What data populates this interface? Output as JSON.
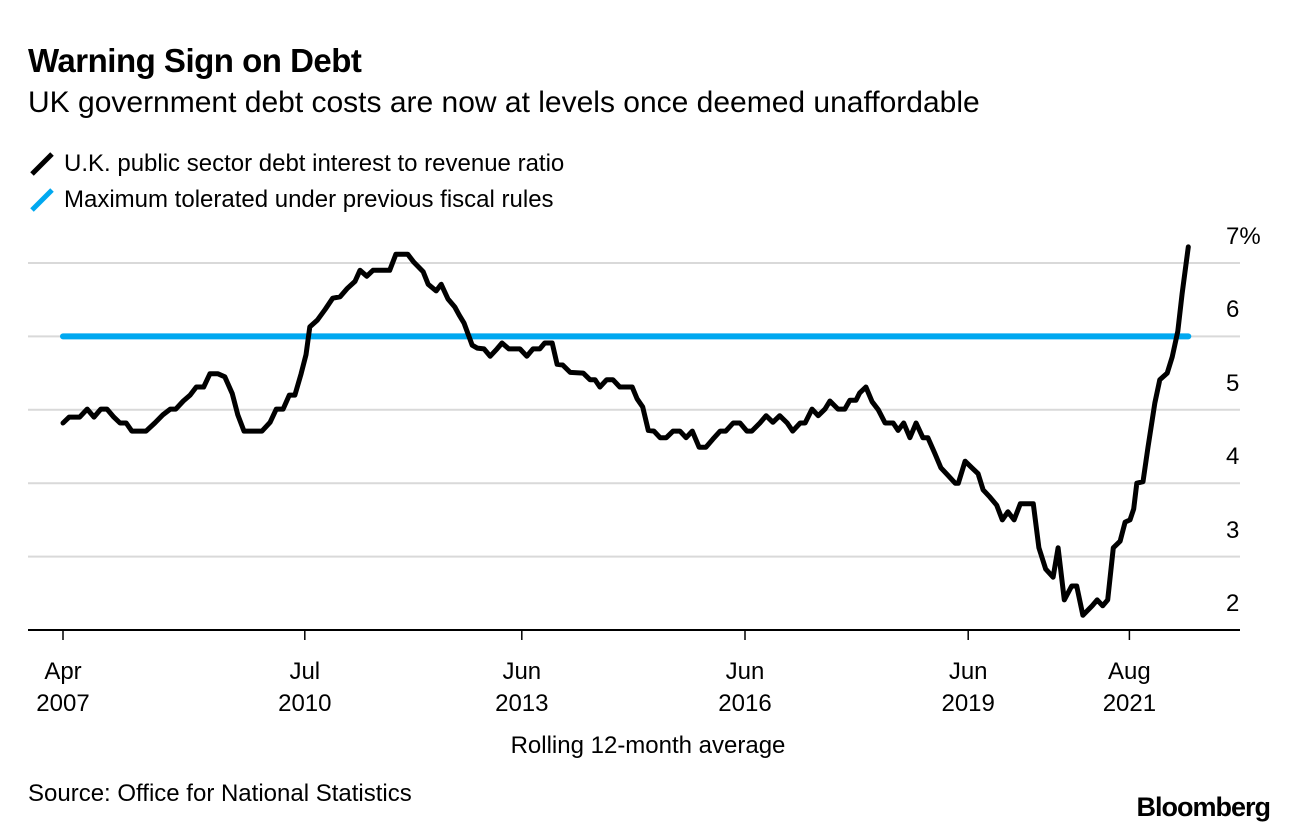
{
  "header": {
    "title": "Warning Sign on Debt",
    "subtitle": "UK government debt costs are now at levels once deemed unaffordable"
  },
  "legend": [
    {
      "label": "U.K. public sector debt interest to revenue ratio",
      "color": "#000000",
      "icon": "diagonal-line-icon"
    },
    {
      "label": "Maximum tolerated under previous fiscal rules",
      "color": "#00a8f0",
      "icon": "diagonal-line-icon"
    }
  ],
  "footer": {
    "xlabel": "Rolling 12-month average",
    "source": "Source: Office for National Statistics",
    "brand": "Bloomberg"
  },
  "chart_data": {
    "type": "line",
    "title": "Warning Sign on Debt",
    "subtitle": "UK government debt costs are now at levels once deemed unaffordable",
    "xlabel": "Rolling 12-month average",
    "ylabel": "",
    "x_unit": "months since Apr 2007",
    "xlim": [
      -5.5,
      189
    ],
    "ylim": [
      2,
      7
    ],
    "y_ticks": [
      {
        "value": 7,
        "label": "7%"
      },
      {
        "value": 6,
        "label": "6"
      },
      {
        "value": 5,
        "label": "5"
      },
      {
        "value": 4,
        "label": "4"
      },
      {
        "value": 3,
        "label": "3"
      },
      {
        "value": 2,
        "label": "2"
      }
    ],
    "x_ticks": [
      {
        "value": 0,
        "month": "Apr",
        "year": "2007"
      },
      {
        "value": 39,
        "month": "Jul",
        "year": "2010"
      },
      {
        "value": 74,
        "month": "Jun",
        "year": "2013"
      },
      {
        "value": 110,
        "month": "Jun",
        "year": "2016"
      },
      {
        "value": 146,
        "month": "Jun",
        "year": "2019"
      },
      {
        "value": 172,
        "month": "Aug",
        "year": "2021"
      }
    ],
    "grid": true,
    "legend_position": "top-left",
    "series": [
      {
        "name": "U.K. public sector debt interest to revenue ratio",
        "color": "#000000",
        "x": [
          0,
          1,
          2.7,
          3.9,
          5,
          6.1,
          7.1,
          8.2,
          9.2,
          10.2,
          11.1,
          13.4,
          14.8,
          16.1,
          17.3,
          18.2,
          19.4,
          20.5,
          21.5,
          22.7,
          23.7,
          25,
          26.1,
          27.3,
          28.2,
          29.2,
          32.1,
          33.4,
          34.4,
          35.5,
          36.5,
          37.4,
          38.4,
          39.2,
          39.8,
          41,
          42.3,
          43.5,
          44.7,
          45.8,
          47.1,
          47.9,
          49,
          50,
          52.7,
          53.7,
          55.6,
          56.6,
          58.1,
          58.9,
          60.2,
          61,
          62.1,
          63.2,
          63.9,
          64.7,
          66,
          66.8,
          67.9,
          68.9,
          70,
          70.8,
          71.9,
          73.7,
          74.8,
          75.8,
          76.9,
          77.7,
          78.9,
          79.7,
          80.6,
          81.8,
          83.9,
          85,
          85.8,
          86.6,
          87.7,
          88.7,
          89.8,
          91.8,
          92.6,
          93.5,
          94.4,
          95.3,
          96.3,
          97.3,
          98.4,
          99.5,
          100.5,
          101.5,
          102.6,
          103.7,
          104.8,
          106,
          106.9,
          108.1,
          109.2,
          110.3,
          111.1,
          112.4,
          113.4,
          114.5,
          115.6,
          116.8,
          117.7,
          118.9,
          119.7,
          120.8,
          121.8,
          122.9,
          123.7,
          125,
          126.1,
          126.9,
          127.9,
          128.5,
          129.5,
          130.5,
          131.5,
          132.6,
          133.9,
          134.7,
          135.6,
          136.6,
          137.6,
          138.7,
          139.5,
          140.6,
          141.6,
          142.7,
          143.9,
          144.4,
          145.5,
          146.6,
          147.6,
          148.4,
          149.5,
          150.6,
          151.5,
          152.4,
          153.4,
          154.4,
          156.5,
          157.4,
          158.5,
          159.7,
          160.5,
          161.5,
          162.7,
          163.5,
          164.5,
          166,
          166.8,
          167.7,
          168.5,
          169.4,
          170.5,
          171.3,
          172.1,
          172.7,
          173.2,
          174.2,
          175,
          176.1,
          176.9,
          178.1,
          178.9,
          179.8,
          180.5,
          181.5
        ],
        "values": [
          4.82,
          4.9,
          4.9,
          5.01,
          4.9,
          5.01,
          5.01,
          4.9,
          4.82,
          4.82,
          4.71,
          4.71,
          4.82,
          4.93,
          5.01,
          5.01,
          5.12,
          5.2,
          5.31,
          5.31,
          5.49,
          5.49,
          5.45,
          5.22,
          4.93,
          4.71,
          4.71,
          4.83,
          5.01,
          5.01,
          5.2,
          5.2,
          5.49,
          5.75,
          6.13,
          6.22,
          6.37,
          6.52,
          6.54,
          6.65,
          6.75,
          6.9,
          6.82,
          6.9,
          6.9,
          7.12,
          7.12,
          7.01,
          6.88,
          6.71,
          6.62,
          6.71,
          6.51,
          6.4,
          6.29,
          6.18,
          5.88,
          5.84,
          5.83,
          5.73,
          5.83,
          5.91,
          5.83,
          5.83,
          5.73,
          5.83,
          5.83,
          5.91,
          5.91,
          5.62,
          5.61,
          5.51,
          5.5,
          5.41,
          5.41,
          5.31,
          5.41,
          5.41,
          5.31,
          5.31,
          5.15,
          5.04,
          4.72,
          4.71,
          4.62,
          4.62,
          4.71,
          4.71,
          4.62,
          4.71,
          4.49,
          4.49,
          4.6,
          4.71,
          4.71,
          4.82,
          4.82,
          4.71,
          4.71,
          4.82,
          4.92,
          4.83,
          4.92,
          4.82,
          4.71,
          4.82,
          4.82,
          5.01,
          4.92,
          5.01,
          5.12,
          5.01,
          5.01,
          5.13,
          5.13,
          5.23,
          5.31,
          5.11,
          5.0,
          4.82,
          4.82,
          4.72,
          4.82,
          4.62,
          4.82,
          4.62,
          4.62,
          4.41,
          4.21,
          4.11,
          4.0,
          4.0,
          4.3,
          4.21,
          4.13,
          3.91,
          3.81,
          3.7,
          3.5,
          3.61,
          3.5,
          3.72,
          3.72,
          3.12,
          2.83,
          2.72,
          3.12,
          2.41,
          2.6,
          2.6,
          2.2,
          2.33,
          2.41,
          2.33,
          2.41,
          3.12,
          3.21,
          3.47,
          3.5,
          3.65,
          4.0,
          4.02,
          4.49,
          5.09,
          5.41,
          5.5,
          5.72,
          6.07,
          6.58,
          7.22
        ]
      },
      {
        "name": "Maximum tolerated under previous fiscal rules",
        "color": "#00a8f0",
        "x": [
          0,
          181.5
        ],
        "values": [
          6,
          6
        ]
      }
    ]
  }
}
